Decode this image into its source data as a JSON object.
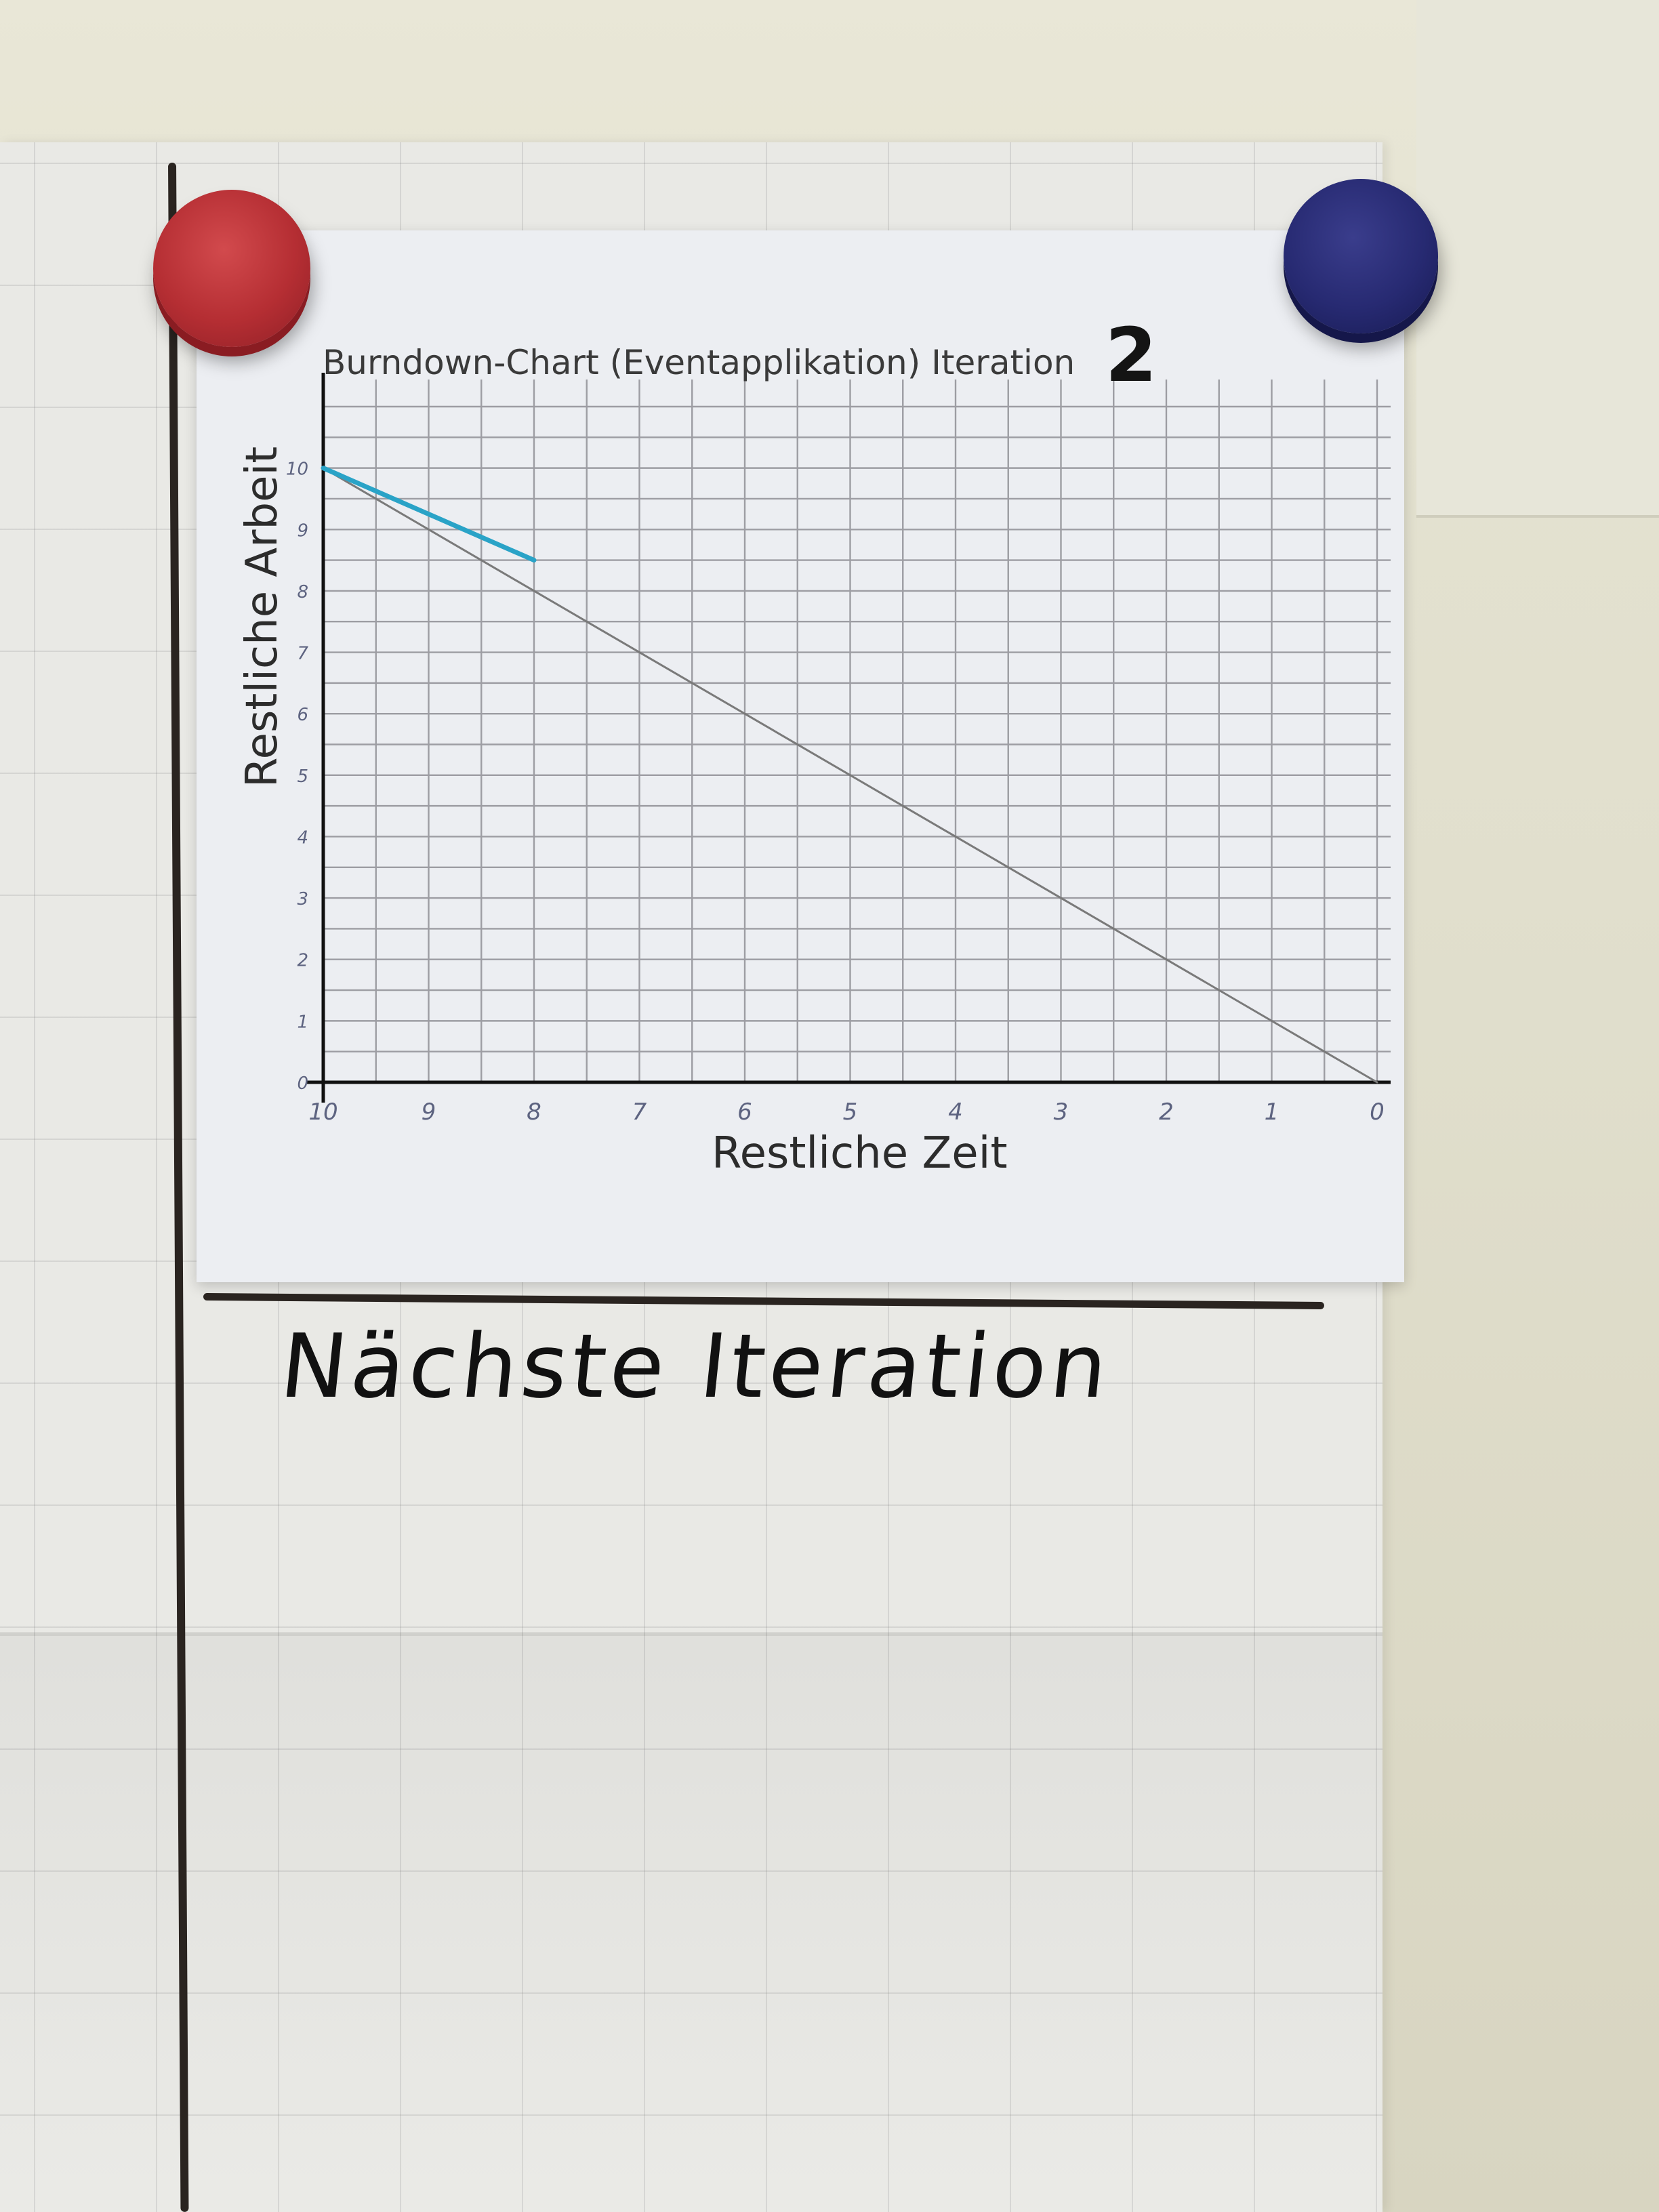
{
  "chart_data": {
    "type": "line",
    "title": "Burndown-Chart (Eventapplikation) Iteration",
    "iteration_number": "2",
    "xlabel": "Restliche Zeit",
    "ylabel": "Restliche Arbeit",
    "x_ticks": [
      "10",
      "9",
      "8",
      "7",
      "6",
      "5",
      "4",
      "3",
      "2",
      "1",
      "0"
    ],
    "y_ticks": [
      "0",
      "1",
      "2",
      "3",
      "4",
      "5",
      "6",
      "7",
      "8",
      "9",
      "10"
    ],
    "xlim": [
      10,
      0
    ],
    "ylim": [
      0,
      11
    ],
    "grid": true,
    "series": [
      {
        "x": [
          10,
          0
        ],
        "y": [
          10,
          0
        ],
        "color": "#7a7a7a"
      },
      {
        "x": [
          10,
          8
        ],
        "y": [
          10,
          8.5
        ],
        "color": "#2aa3c7"
      }
    ]
  },
  "board": {
    "section_heading": "Nächste Iteration"
  },
  "magnets": {
    "left_color": "#b52e33",
    "right_color": "#272a72"
  }
}
